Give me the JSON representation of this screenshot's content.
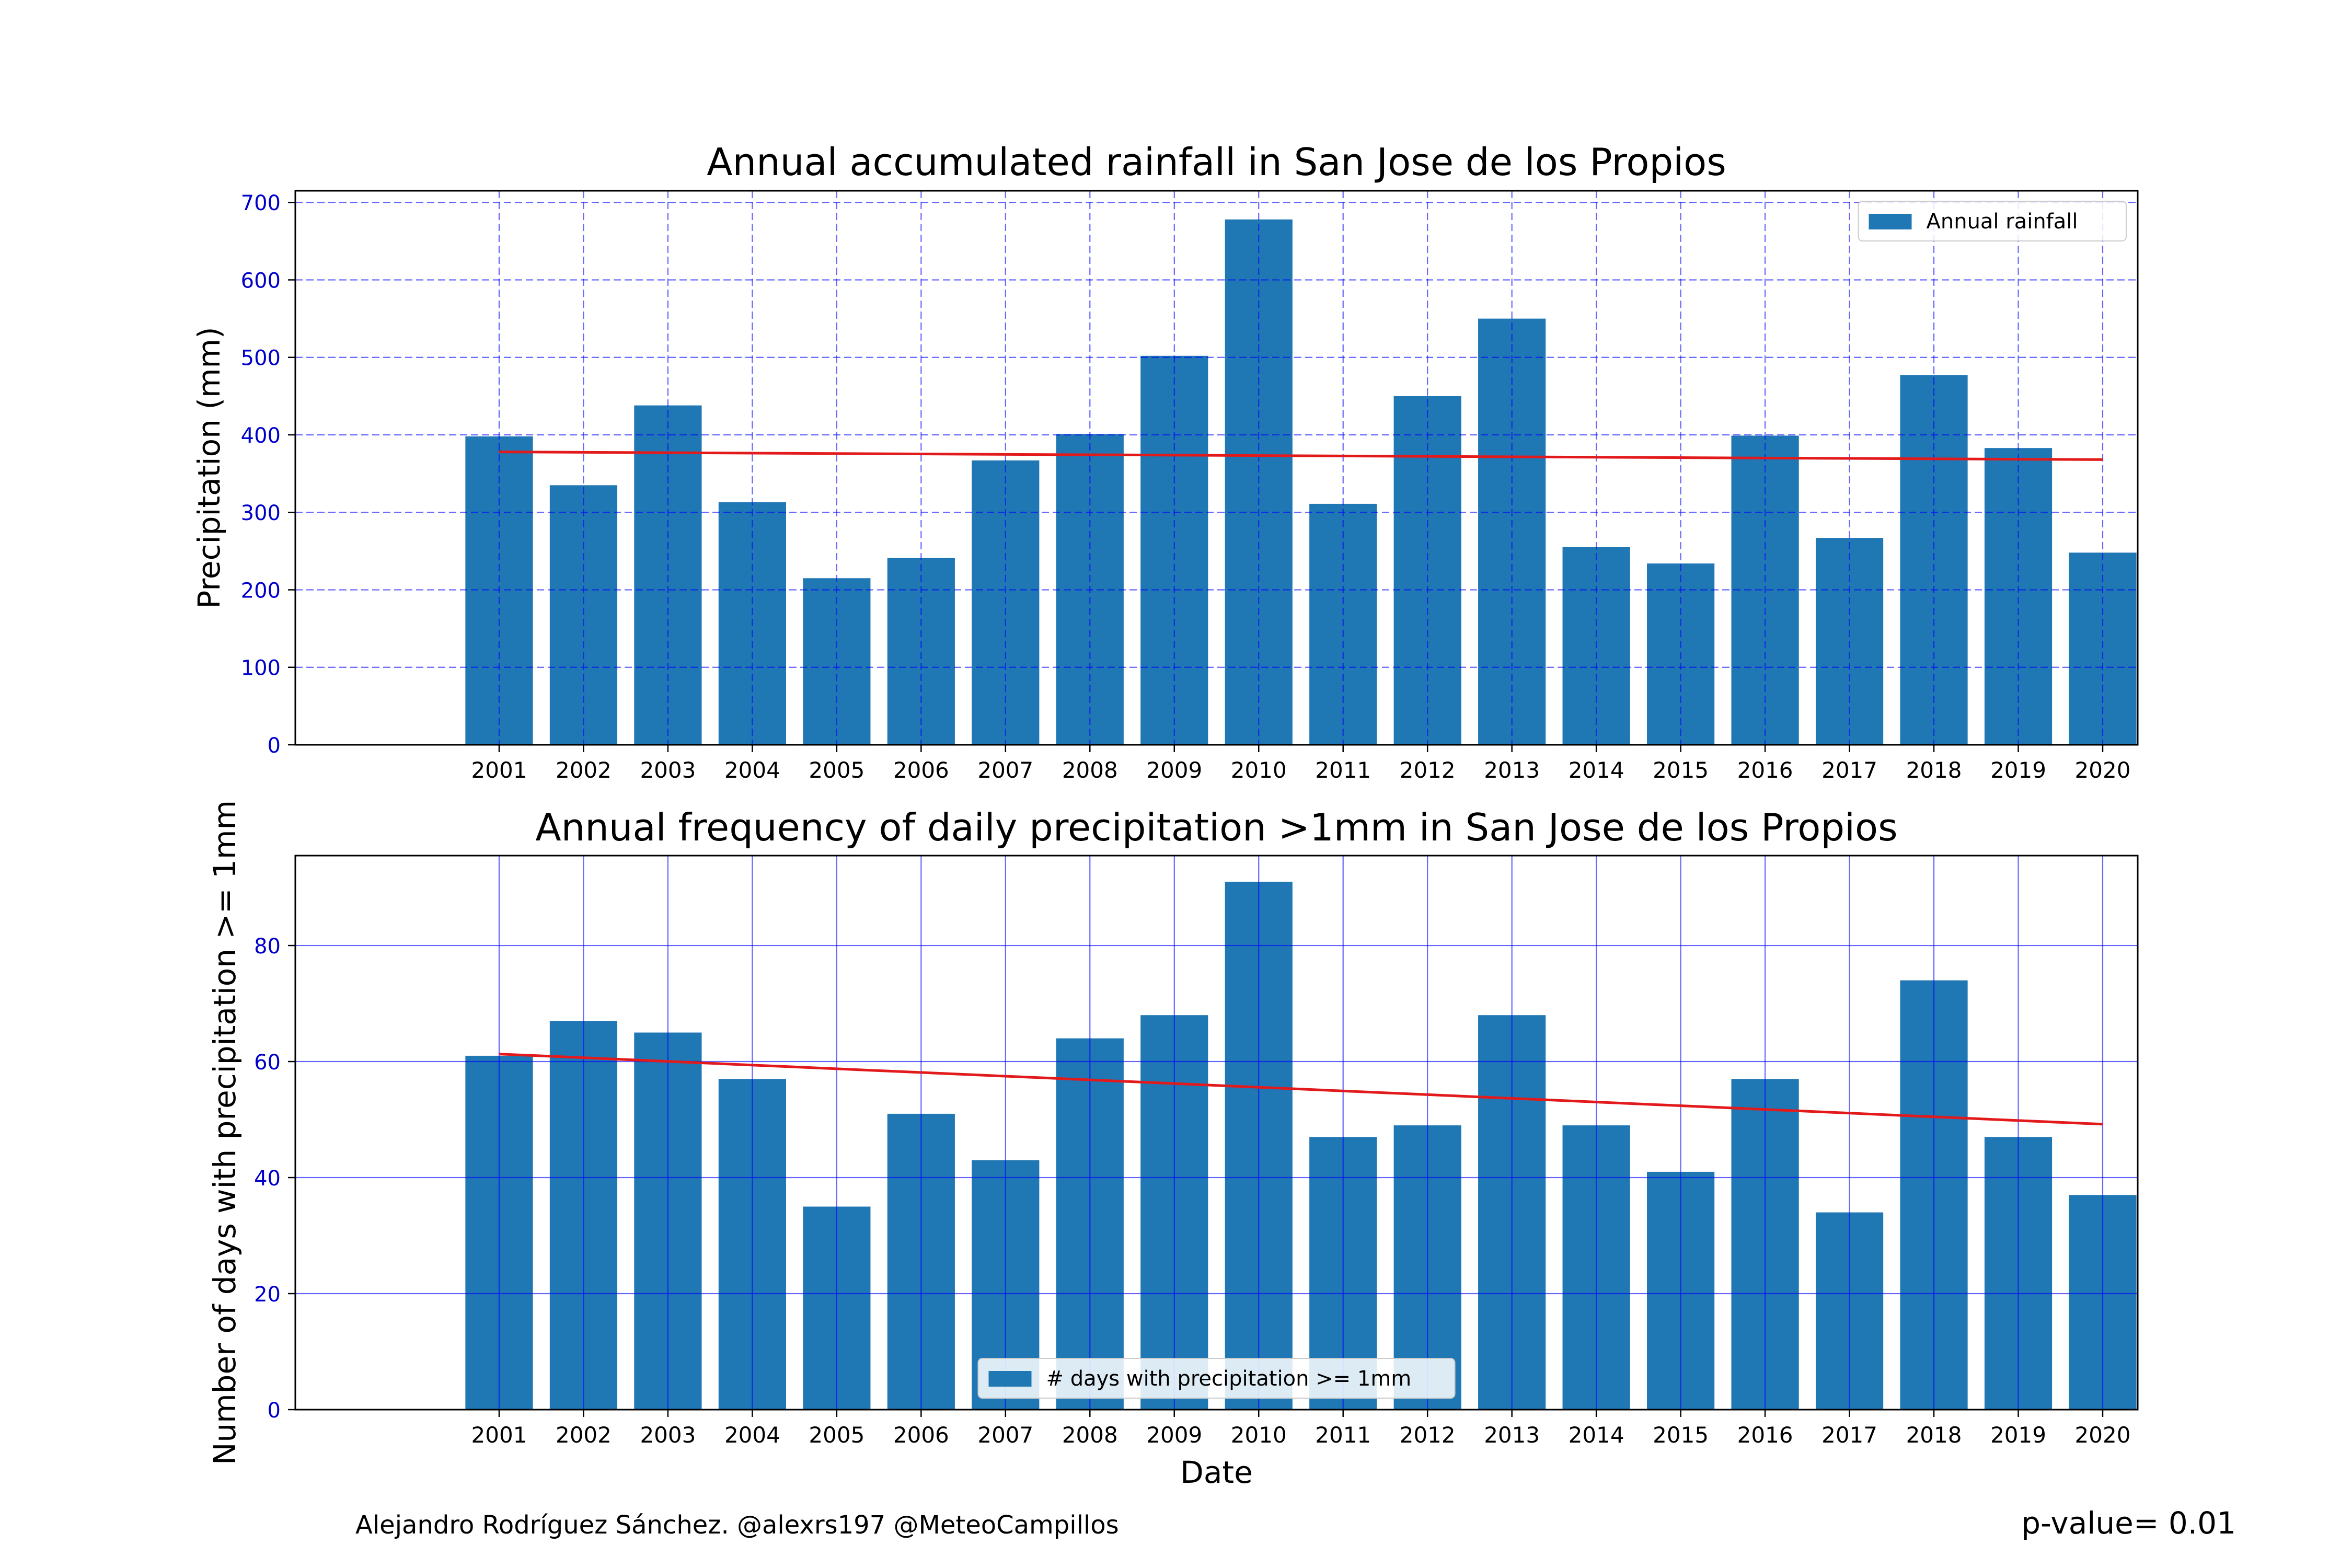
{
  "chart_data": [
    {
      "type": "bar",
      "title": "Annual accumulated rainfall in San Jose de los Propios",
      "xlabel": "",
      "ylabel": "Precipitation (mm)",
      "categories": [
        "2001",
        "2002",
        "2003",
        "2004",
        "2005",
        "2006",
        "2007",
        "2008",
        "2009",
        "2010",
        "2011",
        "2012",
        "2013",
        "2014",
        "2015",
        "2016",
        "2017",
        "2018",
        "2019",
        "2020"
      ],
      "series": [
        {
          "name": "Annual rainfall",
          "values": [
            398,
            335,
            438,
            313,
            215,
            241,
            367,
            401,
            502,
            678,
            311,
            450,
            550,
            255,
            234,
            399,
            267,
            477,
            383,
            248
          ]
        }
      ],
      "trend": {
        "start": 378,
        "end": 368
      },
      "ylim": [
        0,
        715
      ],
      "yticks": [
        0,
        100,
        200,
        300,
        400,
        500,
        600,
        700
      ],
      "grid": "dashed",
      "legend": "top-right",
      "bar_color": "#1f77b4",
      "trend_color": "#e31a1c",
      "tick_color": "#0000cc"
    },
    {
      "type": "bar",
      "title": "Annual frequency of daily precipitation >1mm in San Jose de los Propios",
      "xlabel": "Date",
      "ylabel": "Number of days with precipitation >= 1mm",
      "categories": [
        "2001",
        "2002",
        "2003",
        "2004",
        "2005",
        "2006",
        "2007",
        "2008",
        "2009",
        "2010",
        "2011",
        "2012",
        "2013",
        "2014",
        "2015",
        "2016",
        "2017",
        "2018",
        "2019",
        "2020"
      ],
      "series": [
        {
          "name": "# days with precipitation >= 1mm",
          "values": [
            61,
            67,
            65,
            57,
            35,
            51,
            43,
            64,
            68,
            91,
            47,
            49,
            68,
            49,
            41,
            57,
            34,
            74,
            47,
            37
          ]
        }
      ],
      "trend": {
        "start": 61.3,
        "end": 49.2
      },
      "ylim": [
        0,
        95.5
      ],
      "yticks": [
        0,
        20,
        40,
        60,
        80
      ],
      "grid": "solid",
      "legend": "bottom-center",
      "bar_color": "#1f77b4",
      "trend_color": "#e31a1c",
      "tick_color": "#0000cc"
    }
  ],
  "footer": {
    "credit": "Alejandro Rodríguez Sánchez. @alexrs197 @MeteoCampillos",
    "pvalue": "p-value= 0.01"
  }
}
